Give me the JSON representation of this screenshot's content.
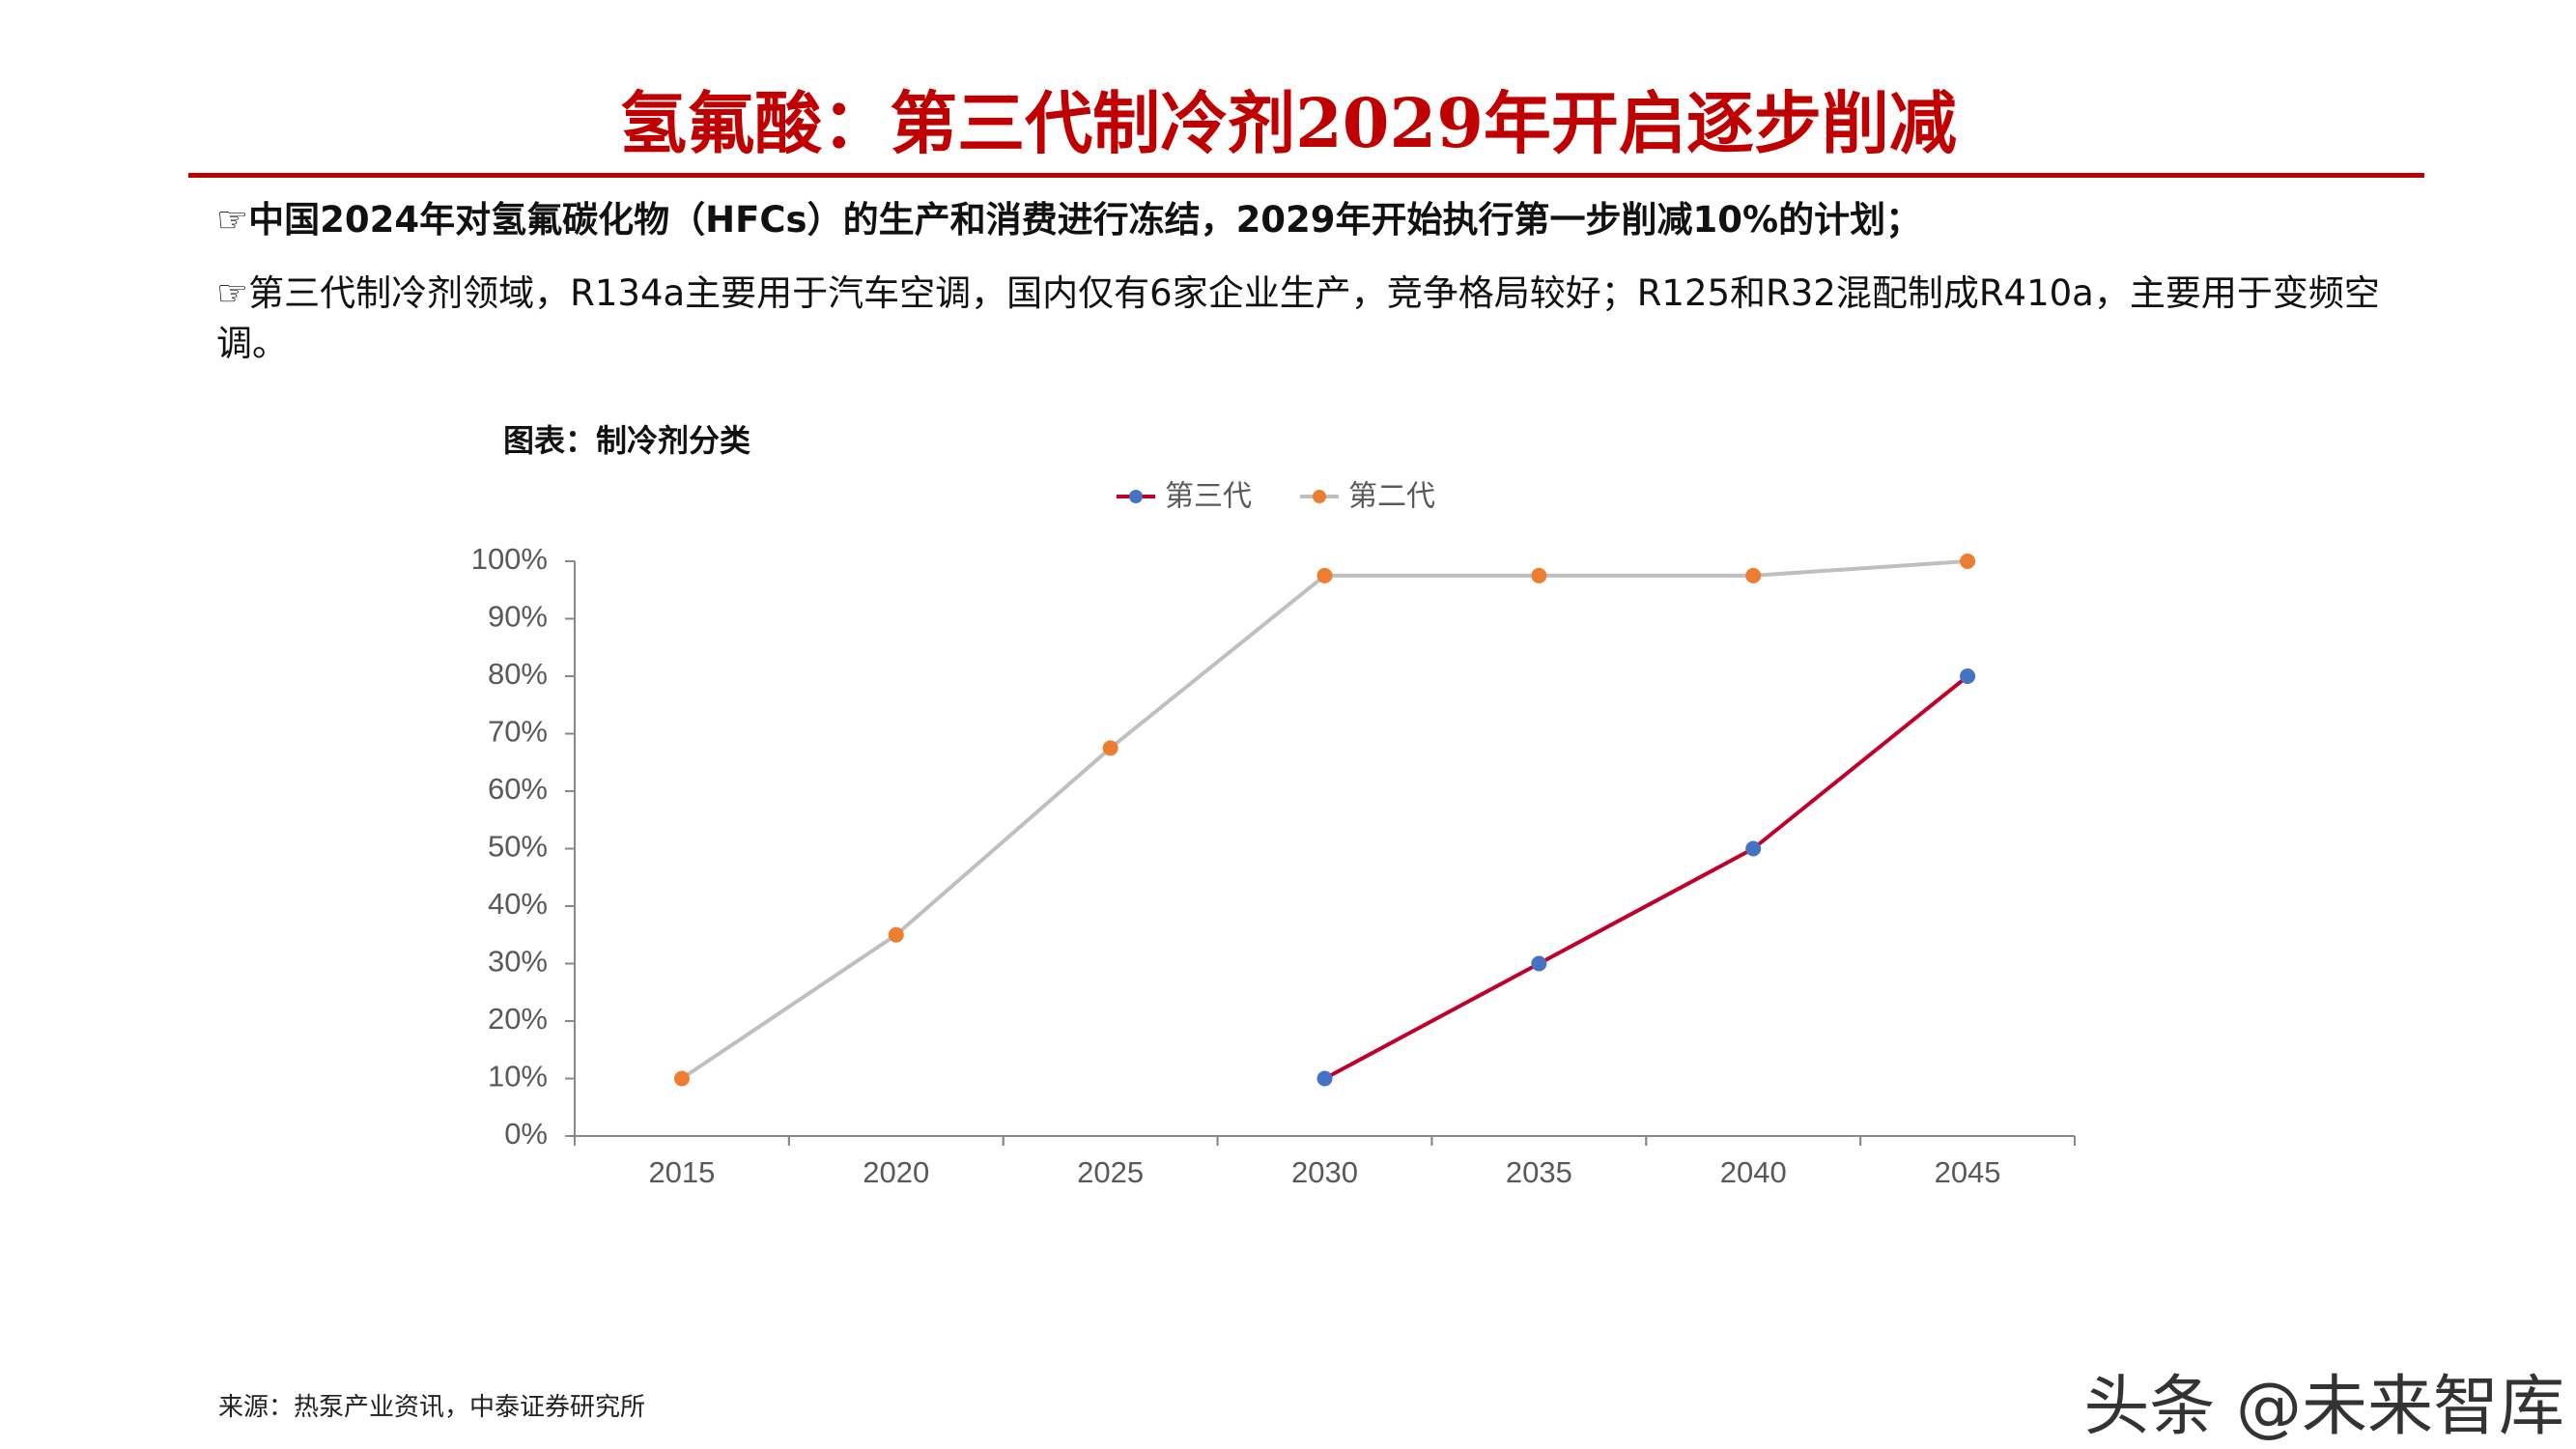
{
  "header": {
    "title": "氢氟酸：第三代制冷剂2029年开启逐步削减"
  },
  "bullets": [
    "☞中国2024年对氢氟碳化物（HFCs）的生产和消费进行冻结，2029年开始执行第一步削减10%的计划；",
    "☞第三代制冷剂领域，R134a主要用于汽车空调，国内仅有6家企业生产，竞争格局较好；R125和R32混配制成R410a，主要用于变频空调。"
  ],
  "chart_data": {
    "type": "line",
    "title": "图表：制冷剂分类",
    "categories": [
      "2015",
      "2020",
      "2025",
      "2030",
      "2035",
      "2040",
      "2045"
    ],
    "series": [
      {
        "name": "第三代",
        "color": "#c0002a",
        "marker_color": "#4472c4",
        "values": [
          null,
          null,
          null,
          10,
          30,
          50,
          80
        ]
      },
      {
        "name": "第二代",
        "color": "#bfbfbf",
        "marker_color": "#ed7d31",
        "values": [
          10,
          35,
          67.5,
          97.5,
          97.5,
          97.5,
          100
        ]
      }
    ],
    "ylim": [
      0,
      100
    ],
    "yticks": [
      {
        "value": 0,
        "label": "0%"
      },
      {
        "value": 10,
        "label": "10%"
      },
      {
        "value": 20,
        "label": "20%"
      },
      {
        "value": 30,
        "label": "30%"
      },
      {
        "value": 40,
        "label": "40%"
      },
      {
        "value": 50,
        "label": "50%"
      },
      {
        "value": 60,
        "label": "60%"
      },
      {
        "value": 70,
        "label": "70%"
      },
      {
        "value": 80,
        "label": "80%"
      },
      {
        "value": 90,
        "label": "90%"
      },
      {
        "value": 100,
        "label": "100%"
      }
    ],
    "grid": false,
    "legend": "top"
  },
  "source": "来源：热泵产业资讯，中泰证券研究所",
  "watermark": "头条 @未来智库"
}
